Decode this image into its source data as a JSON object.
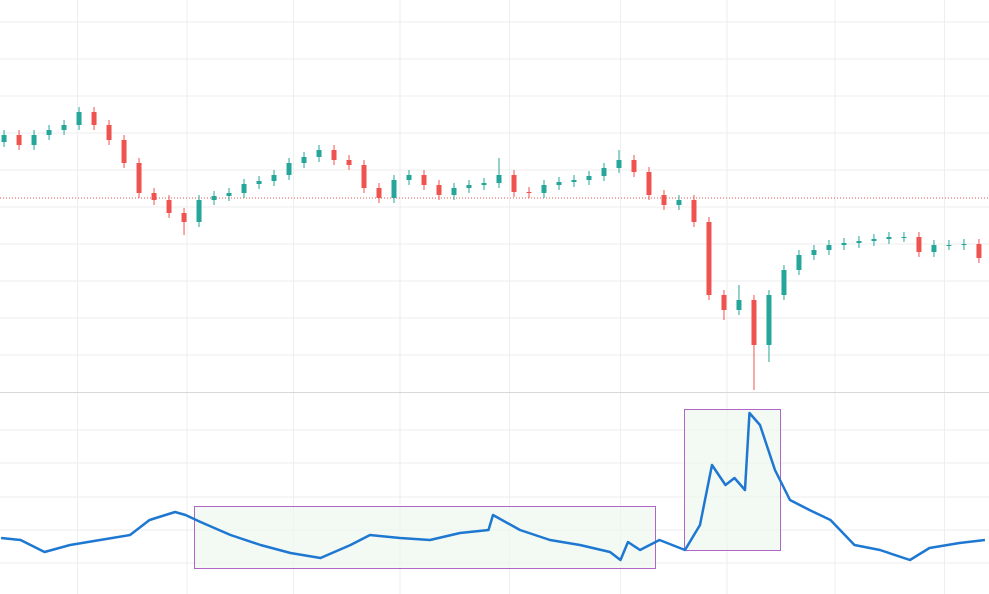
{
  "chart_data": [
    {
      "type": "candlestick",
      "xlim": [
        -0.27,
        65.67
      ],
      "xticks": [
        4.9,
        12.2,
        19.3,
        26.4,
        33.7,
        41.1,
        48.2,
        55.4,
        62.7
      ],
      "ylim": [
        0,
        392
      ],
      "yticks": [
        37,
        74,
        111,
        148,
        185,
        222,
        259,
        296,
        333,
        370
      ],
      "grid": true,
      "up_color": "#26a69a",
      "down_color": "#ef5350",
      "price_line": 194,
      "price_line_color": "#e0574f",
      "opens": [
        250,
        257,
        247,
        257,
        262,
        267,
        280,
        267,
        252,
        229,
        199,
        192,
        179,
        170,
        192,
        196,
        199,
        208,
        211,
        217,
        229,
        235,
        242,
        232,
        227,
        204,
        194,
        212,
        217,
        207,
        197,
        204,
        207,
        209,
        217,
        200,
        199,
        207,
        210,
        212,
        216,
        224,
        232,
        220,
        197,
        187,
        192,
        170,
        97,
        82,
        92,
        47,
        97,
        122,
        137,
        142,
        147,
        149,
        151,
        153,
        155,
        155,
        140,
        147,
        147,
        148
      ],
      "highs": [
        262,
        262,
        262,
        267,
        272,
        285,
        285,
        272,
        257,
        234,
        204,
        197,
        184,
        197,
        201,
        204,
        213,
        216,
        222,
        234,
        240,
        247,
        247,
        237,
        232,
        209,
        217,
        222,
        222,
        212,
        209,
        212,
        214,
        234,
        222,
        205,
        212,
        215,
        217,
        221,
        229,
        242,
        237,
        225,
        202,
        197,
        197,
        175,
        102,
        107,
        97,
        102,
        127,
        142,
        147,
        152,
        154,
        156,
        158,
        160,
        160,
        160,
        152,
        152,
        153,
        153
      ],
      "lows": [
        245,
        242,
        242,
        252,
        257,
        262,
        262,
        247,
        224,
        194,
        187,
        174,
        157,
        165,
        187,
        191,
        194,
        203,
        206,
        212,
        224,
        230,
        227,
        222,
        199,
        189,
        189,
        207,
        202,
        192,
        192,
        199,
        202,
        204,
        195,
        194,
        194,
        202,
        205,
        207,
        211,
        219,
        215,
        192,
        182,
        182,
        165,
        92,
        72,
        77,
        2,
        30,
        92,
        117,
        132,
        137,
        142,
        144,
        146,
        148,
        150,
        135,
        135,
        142,
        142,
        129
      ],
      "closes": [
        257,
        247,
        257,
        262,
        267,
        280,
        267,
        252,
        229,
        199,
        192,
        179,
        170,
        192,
        196,
        199,
        208,
        211,
        217,
        229,
        235,
        242,
        232,
        227,
        204,
        194,
        212,
        217,
        207,
        197,
        204,
        207,
        209,
        217,
        200,
        199,
        207,
        210,
        212,
        216,
        224,
        232,
        220,
        197,
        187,
        192,
        170,
        97,
        82,
        92,
        47,
        97,
        122,
        137,
        142,
        147,
        149,
        151,
        153,
        155,
        155,
        140,
        147,
        147,
        148,
        134
      ]
    },
    {
      "type": "line",
      "xlim": [
        -0.27,
        65.67
      ],
      "xticks": [
        4.9,
        12.2,
        19.3,
        26.4,
        33.7,
        41.1,
        48.2,
        55.4,
        62.7
      ],
      "ylim": [
        0,
        201
      ],
      "yticks": [
        31,
        64,
        97,
        131,
        164
      ],
      "grid": true,
      "color": "#1e78d2",
      "x": [
        -0.2,
        1.1,
        2.7,
        4.4,
        6.4,
        8.4,
        9.7,
        11.4,
        12.1,
        13.1,
        15.1,
        17.1,
        19.1,
        21.1,
        23.1,
        24.4,
        26.4,
        28.4,
        30.4,
        32.3,
        32.6,
        34.4,
        36.4,
        38.4,
        40.4,
        41.1,
        41.6,
        42.4,
        43.7,
        45.4,
        46.4,
        47.2,
        48.1,
        48.7,
        49.4,
        49.7,
        50.4,
        51.4,
        52.4,
        53.7,
        55.1,
        56.7,
        58.4,
        60.4,
        61.7,
        63.7,
        65.4
      ],
      "values": [
        56,
        54,
        42,
        49,
        54,
        59,
        74,
        82,
        79,
        72,
        59,
        49,
        41,
        36,
        49,
        59,
        56,
        54,
        61,
        64,
        79,
        64,
        54,
        49,
        42,
        34,
        52,
        44,
        54,
        44,
        69,
        129,
        109,
        116,
        104,
        181,
        169,
        124,
        94,
        84,
        74,
        49,
        44,
        34,
        46,
        51,
        54
      ]
    }
  ]
}
